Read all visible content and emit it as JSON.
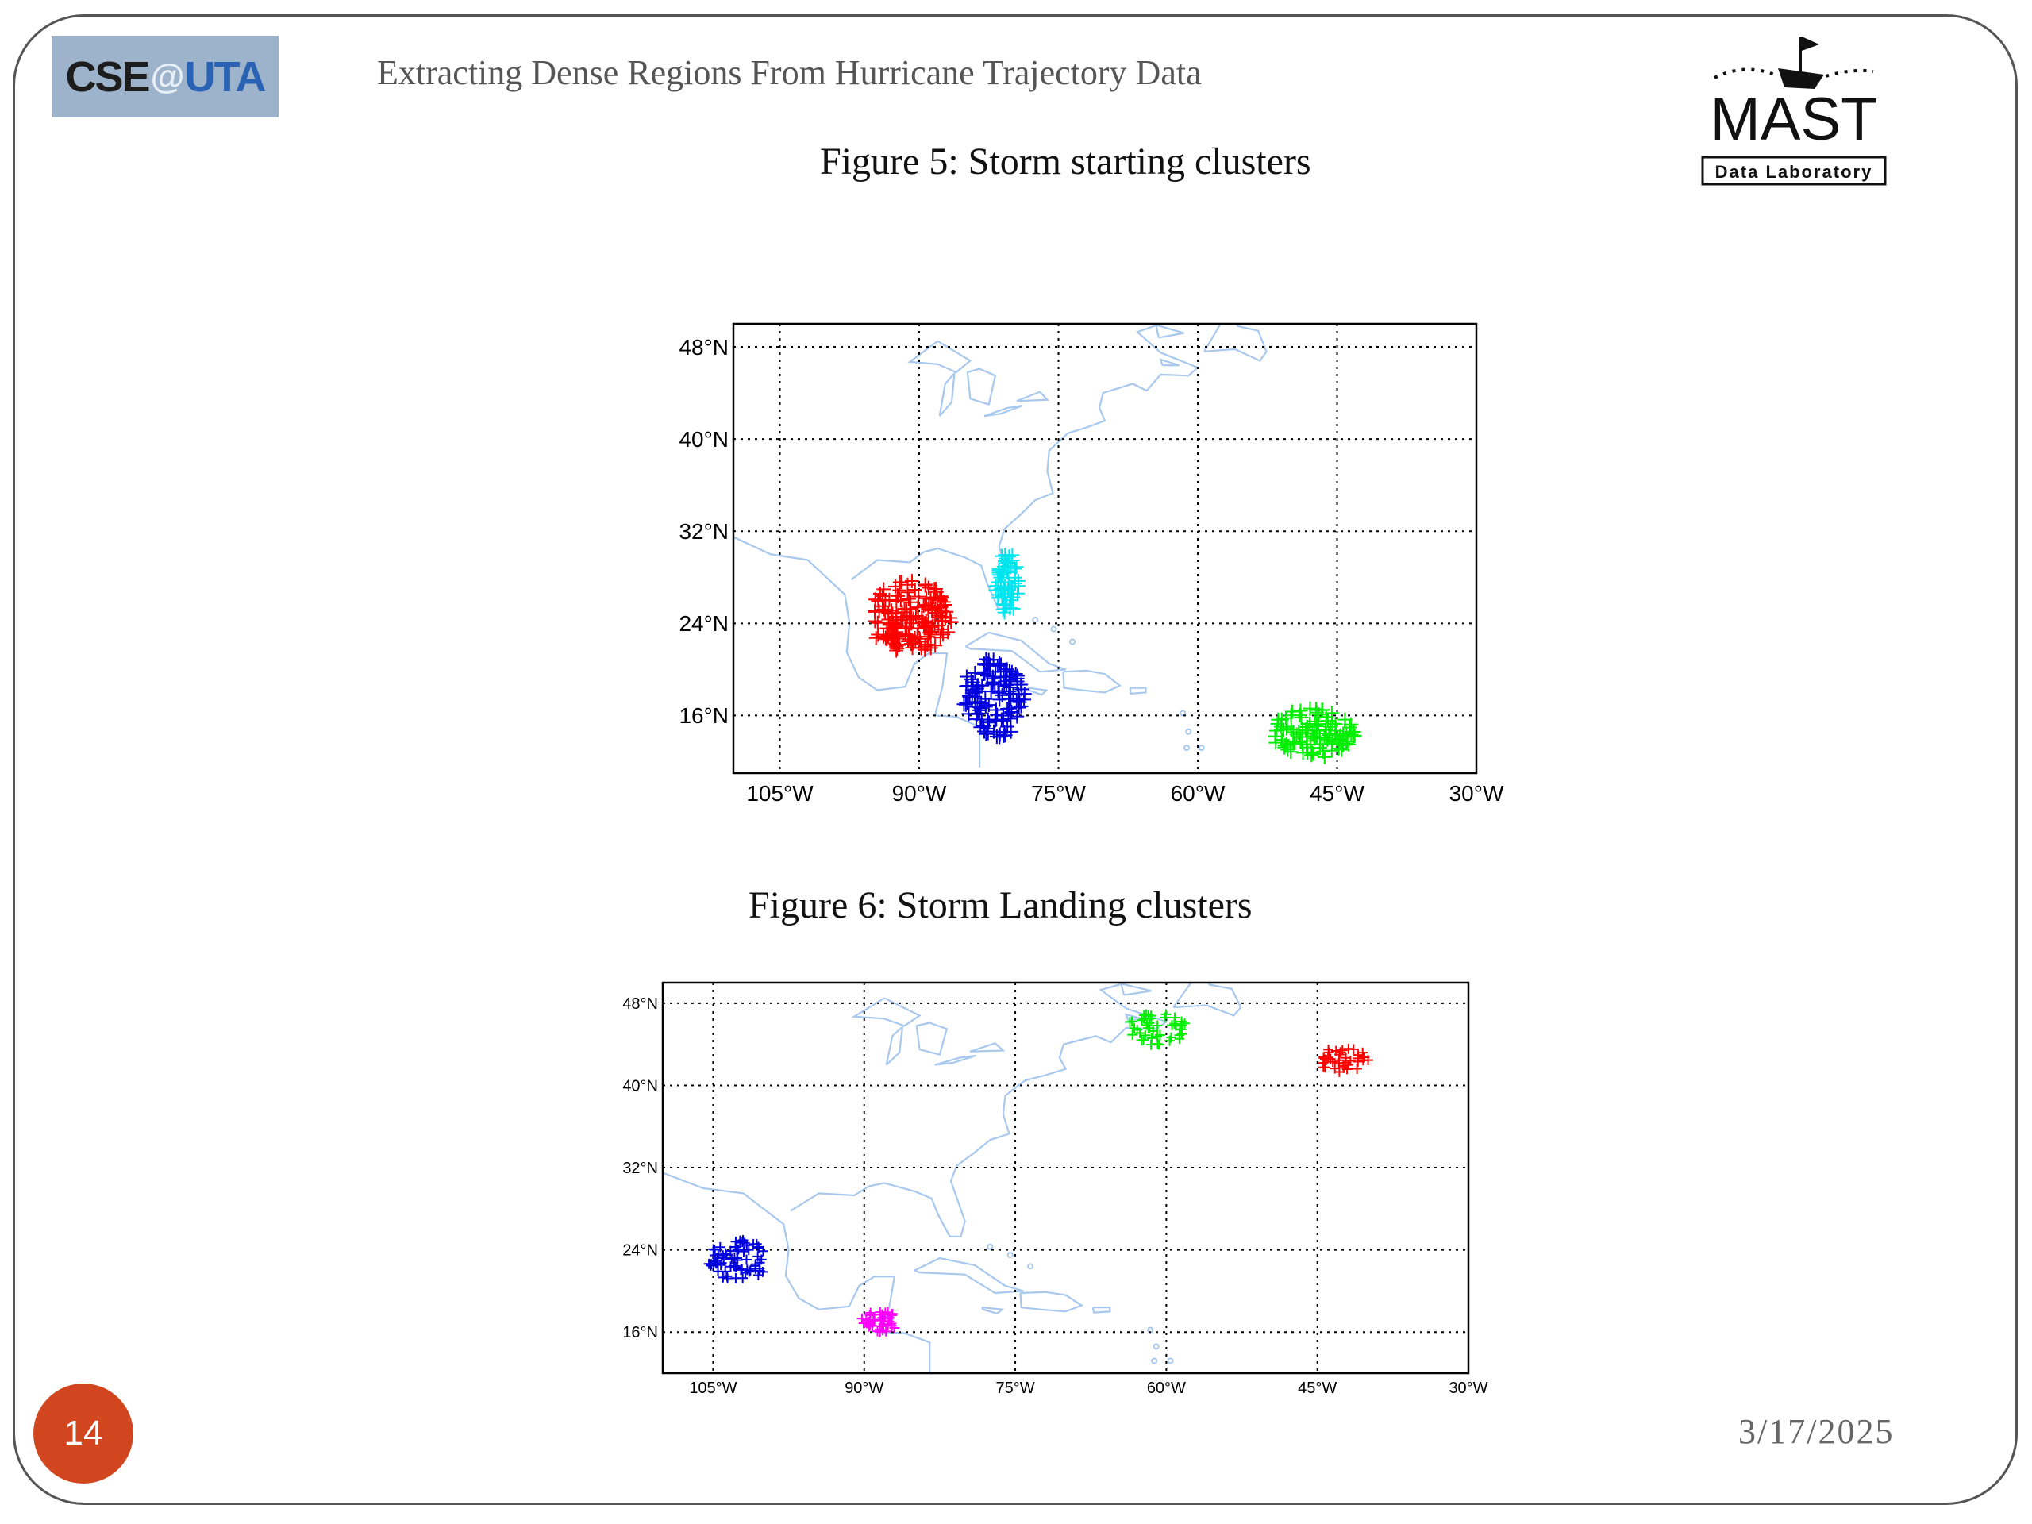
{
  "header": {
    "logo_left": {
      "cse": "CSE",
      "at": "@",
      "uta": "UTA"
    },
    "title": "Extracting Dense Regions From Hurricane Trajectory Data",
    "logo_right": {
      "name": "MAST",
      "tagline": "Data Laboratory"
    }
  },
  "footer": {
    "slide_number": "14",
    "date": "3/17/2025"
  },
  "colors": {
    "red": "#ff0000",
    "cyan": "#00e5ee",
    "blue": "#0000dd",
    "green": "#00ee00",
    "magenta": "#ff00ff",
    "coast": "#a8c8ee"
  },
  "chart_data": [
    {
      "type": "scatter",
      "title": "Figure 5: Storm starting clusters",
      "xlabel": "",
      "ylabel": "",
      "xlim": [
        -110,
        -30
      ],
      "ylim": [
        11,
        50
      ],
      "xticks": [
        -105,
        -90,
        -75,
        -60,
        -45,
        -30
      ],
      "xticklabels": [
        "105°W",
        "90°W",
        "75°W",
        "60°W",
        "45°W",
        "30°W"
      ],
      "yticks": [
        16,
        24,
        32,
        40,
        48
      ],
      "yticklabels": [
        "16°N",
        "24°N",
        "32°N",
        "40°N",
        "48°N"
      ],
      "grid": true,
      "marker": "+",
      "series": [
        {
          "color": "#ff0000",
          "center": [
            -91,
            24.5
          ],
          "spread": [
            4.5,
            3.2
          ],
          "count": 170
        },
        {
          "color": "#00e5ee",
          "center": [
            -80.5,
            27.5
          ],
          "spread": [
            1.3,
            2.8
          ],
          "count": 60
        },
        {
          "color": "#0000dd",
          "center": [
            -82,
            17.5
          ],
          "spread": [
            3.5,
            3.5
          ],
          "count": 130
        },
        {
          "color": "#00ee00",
          "center": [
            -47.5,
            14.5
          ],
          "spread": [
            4.5,
            2.2
          ],
          "count": 110
        }
      ]
    },
    {
      "type": "scatter",
      "title": "Figure 6: Storm Landing clusters",
      "xlabel": "",
      "ylabel": "",
      "xlim": [
        -110,
        -30
      ],
      "ylim": [
        12,
        50
      ],
      "xticks": [
        -105,
        -90,
        -75,
        -60,
        -45,
        -30
      ],
      "xticklabels": [
        "105°W",
        "90°W",
        "75°W",
        "60°W",
        "45°W",
        "30°W"
      ],
      "yticks": [
        16,
        24,
        32,
        40,
        48
      ],
      "yticklabels": [
        "16°N",
        "24°N",
        "32°N",
        "40°N",
        "48°N"
      ],
      "grid": true,
      "marker": "+",
      "series": [
        {
          "color": "#00ee00",
          "center": [
            -61,
            45.5
          ],
          "spread": [
            3,
            1.6
          ],
          "count": 45
        },
        {
          "color": "#ff0000",
          "center": [
            -42.5,
            42.5
          ],
          "spread": [
            2.6,
            1.2
          ],
          "count": 40
        },
        {
          "color": "#0000dd",
          "center": [
            -102.5,
            23
          ],
          "spread": [
            3,
            2
          ],
          "count": 70
        },
        {
          "color": "#ff00ff",
          "center": [
            -88.5,
            17
          ],
          "spread": [
            1.8,
            1.1
          ],
          "count": 40
        }
      ]
    }
  ]
}
